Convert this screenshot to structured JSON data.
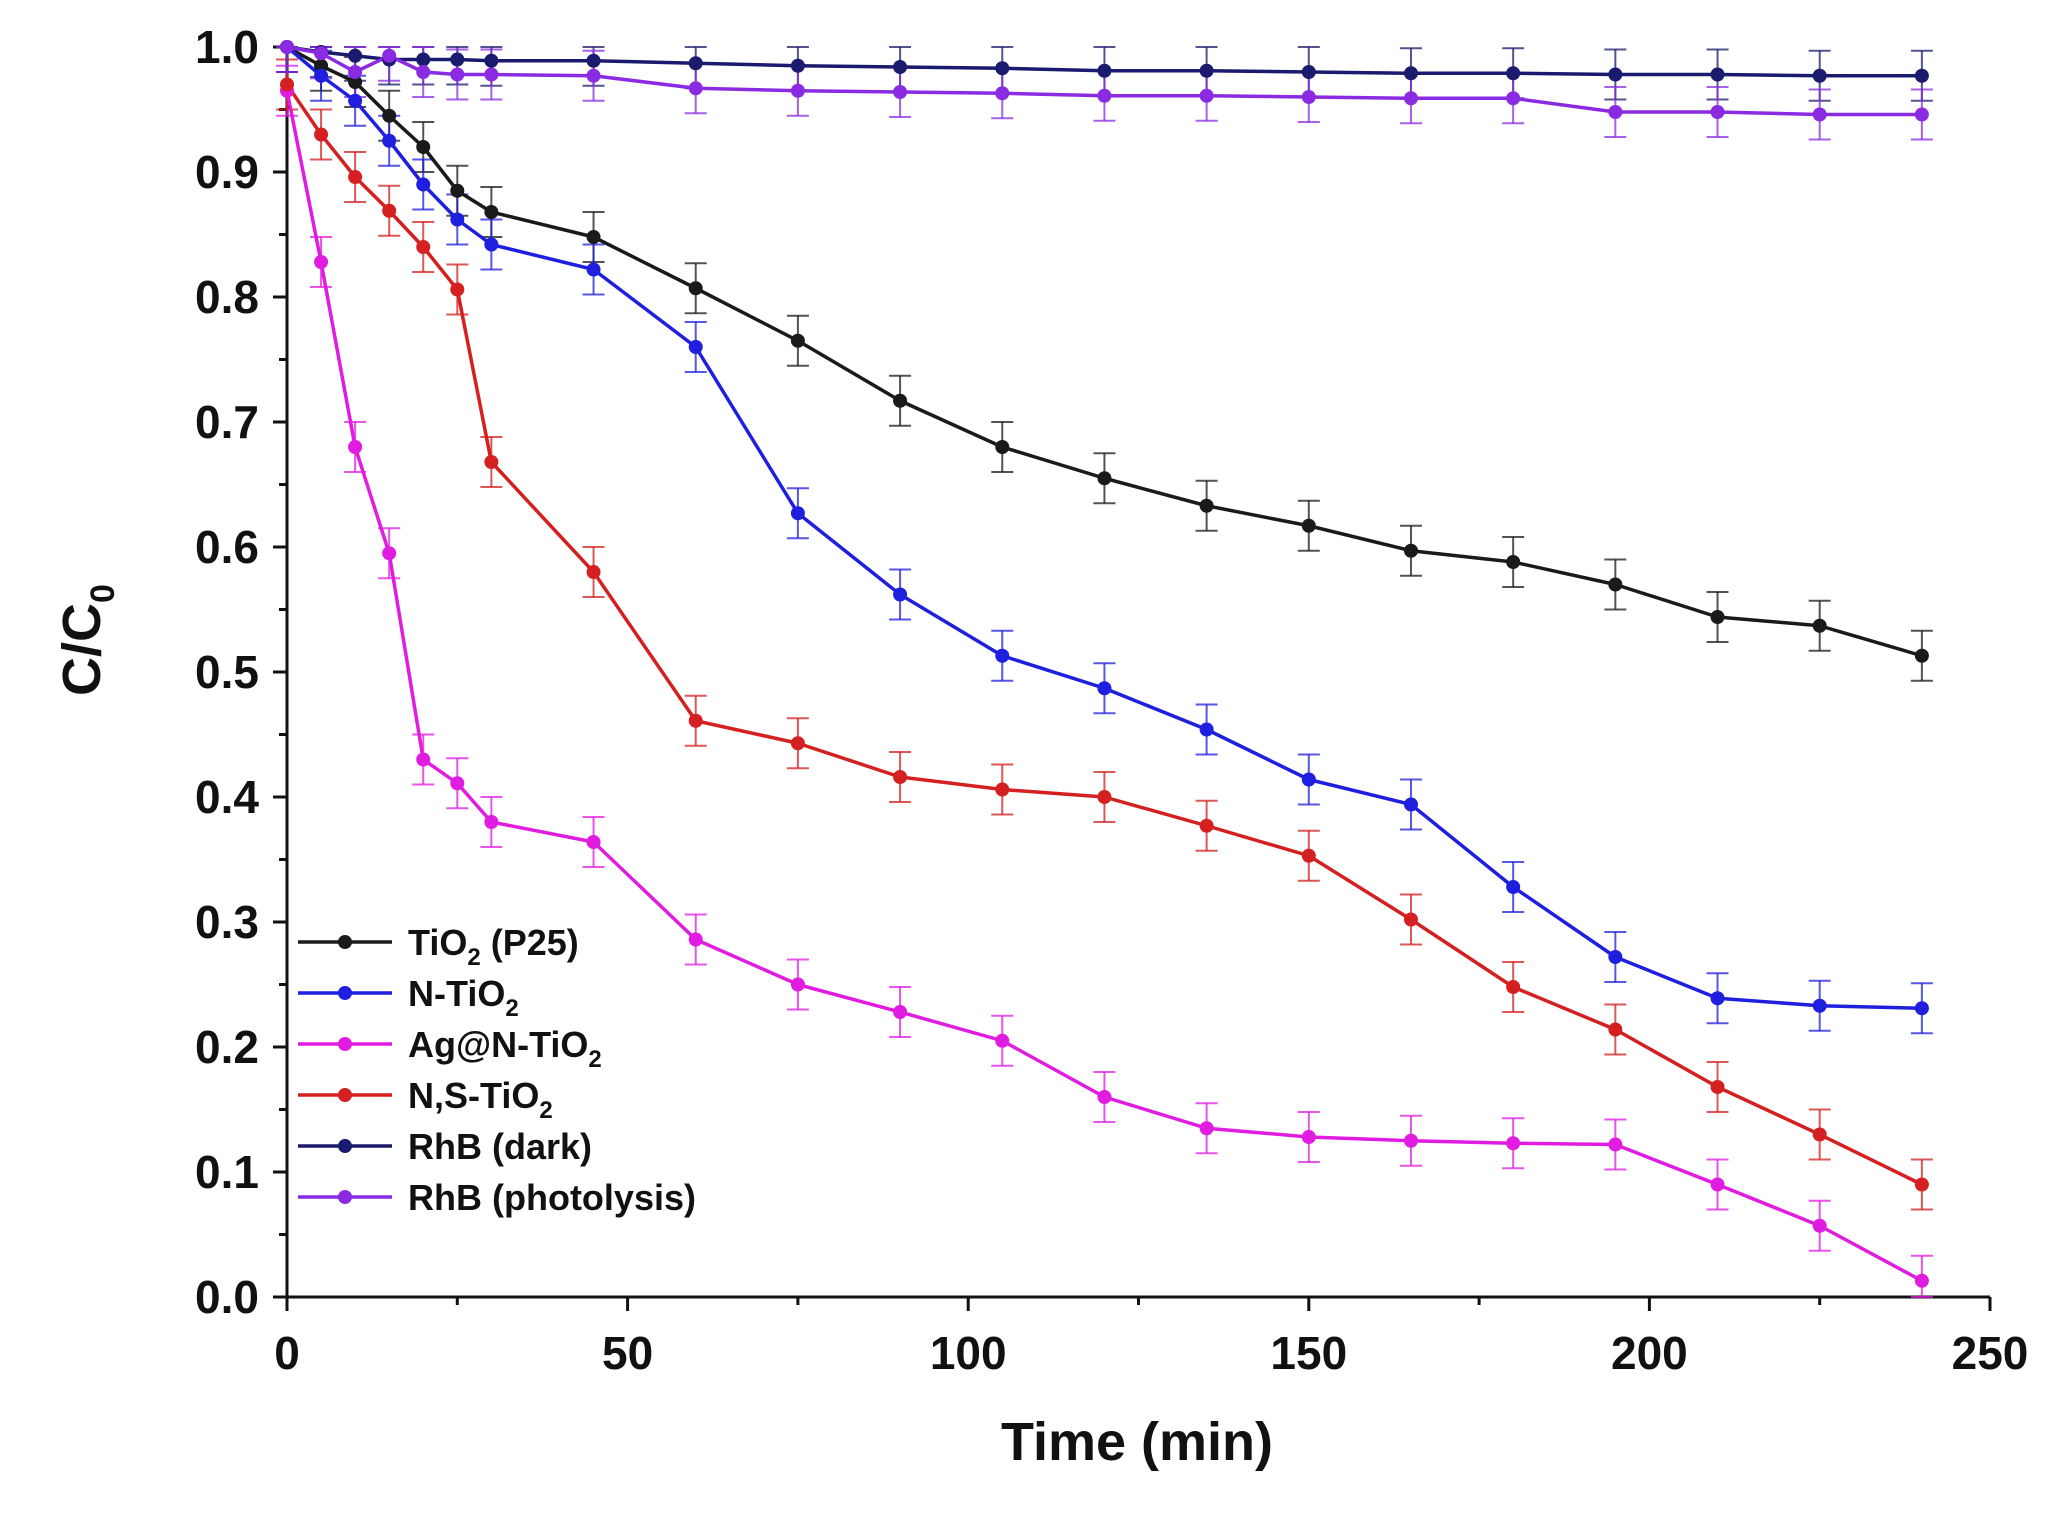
{
  "chart_data": {
    "type": "line",
    "title": "",
    "xlabel": "Time (min)",
    "ylabel": {
      "main": "C/C",
      "sub": "0"
    },
    "xlim": [
      0,
      250
    ],
    "ylim": [
      0,
      1.0
    ],
    "xticks": [
      0,
      50,
      100,
      150,
      200,
      250
    ],
    "yticks": [
      0.0,
      0.1,
      0.2,
      0.3,
      0.4,
      0.5,
      0.6,
      0.7,
      0.8,
      0.9,
      1.0
    ],
    "xtick_labels": [
      "0",
      "50",
      "100",
      "150",
      "200",
      "250"
    ],
    "ytick_labels": [
      "0.0",
      "0.1",
      "0.2",
      "0.3",
      "0.4",
      "0.5",
      "0.6",
      "0.7",
      "0.8",
      "0.9",
      "1.0"
    ],
    "grid": false,
    "legend_position": "bottom-left",
    "error_bar": 0.02,
    "x": [
      0,
      5,
      10,
      15,
      20,
      25,
      30,
      45,
      60,
      75,
      90,
      105,
      120,
      135,
      150,
      165,
      180,
      195,
      210,
      225,
      240
    ],
    "series": [
      {
        "name": "TiO2 (P25)",
        "label_main": "TiO",
        "label_sub": "2",
        "label_tail": " (P25)",
        "color": "#1a1a1a",
        "values": [
          1.0,
          0.985,
          0.972,
          0.945,
          0.92,
          0.885,
          0.868,
          0.848,
          0.807,
          0.765,
          0.717,
          0.68,
          0.655,
          0.633,
          0.617,
          0.597,
          0.588,
          0.57,
          0.544,
          0.537,
          0.513
        ]
      },
      {
        "name": "N-TiO2",
        "label_main": "N-TiO",
        "label_sub": "2",
        "label_tail": "",
        "color": "#1f1fe0",
        "values": [
          1.0,
          0.977,
          0.957,
          0.925,
          0.89,
          0.862,
          0.842,
          0.822,
          0.76,
          0.627,
          0.562,
          0.513,
          0.487,
          0.454,
          0.414,
          0.394,
          0.328,
          0.272,
          0.239,
          0.233,
          0.231
        ]
      },
      {
        "name": "Ag@N-TiO2",
        "label_main": "Ag@N-TiO",
        "label_sub": "2",
        "label_tail": "",
        "color": "#e01ce0",
        "values": [
          0.965,
          0.828,
          0.68,
          0.595,
          0.43,
          0.411,
          0.38,
          0.364,
          0.286,
          0.25,
          0.228,
          0.205,
          0.16,
          0.135,
          0.128,
          0.125,
          0.123,
          0.122,
          0.09,
          0.057,
          0.013
        ]
      },
      {
        "name": "N,S-TiO2",
        "label_main": "N,S-TiO",
        "label_sub": "2",
        "label_tail": "",
        "color": "#d42020",
        "values": [
          0.97,
          0.93,
          0.896,
          0.869,
          0.84,
          0.806,
          0.668,
          0.58,
          0.461,
          0.443,
          0.416,
          0.406,
          0.4,
          0.377,
          0.353,
          0.302,
          0.248,
          0.214,
          0.168,
          0.13,
          0.09
        ]
      },
      {
        "name": "RhB (dark)",
        "label_main": "RhB (dark)",
        "label_sub": "",
        "label_tail": "",
        "color": "#1a1a6e",
        "values": [
          1.0,
          0.996,
          0.993,
          0.99,
          0.99,
          0.99,
          0.989,
          0.989,
          0.987,
          0.985,
          0.984,
          0.983,
          0.981,
          0.981,
          0.98,
          0.979,
          0.979,
          0.978,
          0.978,
          0.977,
          0.977
        ]
      },
      {
        "name": "RhB (photolysis)",
        "label_main": "RhB (photolysis)",
        "label_sub": "",
        "label_tail": "",
        "color": "#8a2be2",
        "values": [
          1.0,
          0.995,
          0.98,
          0.993,
          0.98,
          0.978,
          0.978,
          0.977,
          0.967,
          0.965,
          0.964,
          0.963,
          0.961,
          0.961,
          0.96,
          0.959,
          0.959,
          0.948,
          0.948,
          0.946,
          0.946
        ]
      }
    ]
  }
}
